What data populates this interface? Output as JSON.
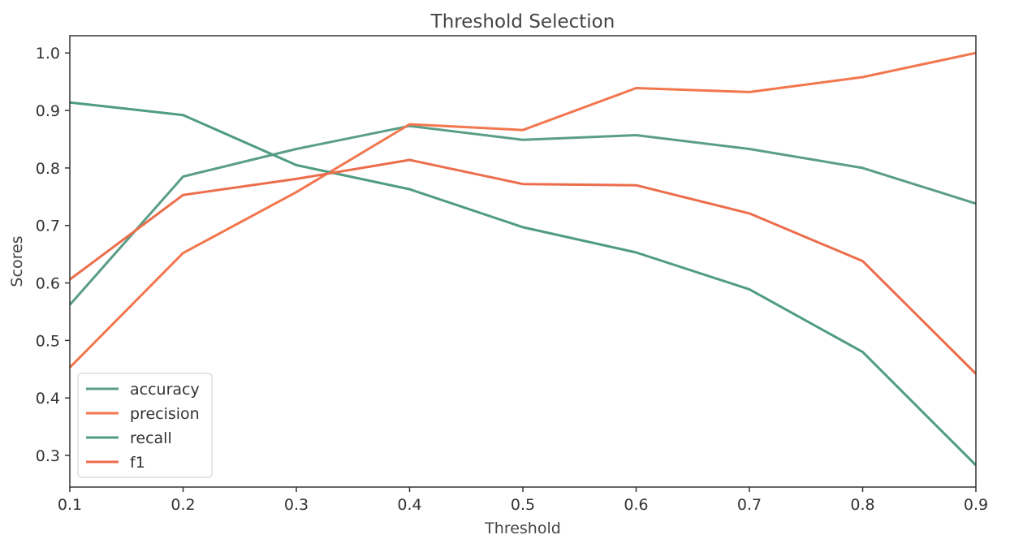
{
  "chart_data": {
    "type": "line",
    "title": "Threshold Selection",
    "xlabel": "Threshold",
    "ylabel": "Scores",
    "xlim": [
      0.1,
      0.9
    ],
    "ylim": [
      0.245,
      1.03
    ],
    "xticks": [
      0.1,
      0.2,
      0.3,
      0.4,
      0.5,
      0.6,
      0.7,
      0.8,
      0.9
    ],
    "yticks": [
      0.3,
      0.4,
      0.5,
      0.6,
      0.7,
      0.8,
      0.9,
      1.0
    ],
    "x": [
      0.1,
      0.2,
      0.3,
      0.4,
      0.5,
      0.6,
      0.7,
      0.8,
      0.9
    ],
    "grid": false,
    "legend_position": "lower-left",
    "series": [
      {
        "name": "accuracy",
        "color": "#5a9e86",
        "values": [
          0.562,
          0.785,
          0.833,
          0.873,
          0.849,
          0.857,
          0.833,
          0.8,
          0.738
        ]
      },
      {
        "name": "precision",
        "color": "#f2764e",
        "values": [
          0.453,
          0.652,
          0.758,
          0.876,
          0.866,
          0.939,
          0.932,
          0.958,
          1.0
        ]
      },
      {
        "name": "recall",
        "color": "#4f9c81",
        "values": [
          0.914,
          0.892,
          0.805,
          0.763,
          0.697,
          0.653,
          0.589,
          0.48,
          0.283
        ]
      },
      {
        "name": "f1",
        "color": "#ec6d4b",
        "values": [
          0.606,
          0.753,
          0.781,
          0.814,
          0.772,
          0.77,
          0.721,
          0.638,
          0.442
        ]
      }
    ]
  }
}
